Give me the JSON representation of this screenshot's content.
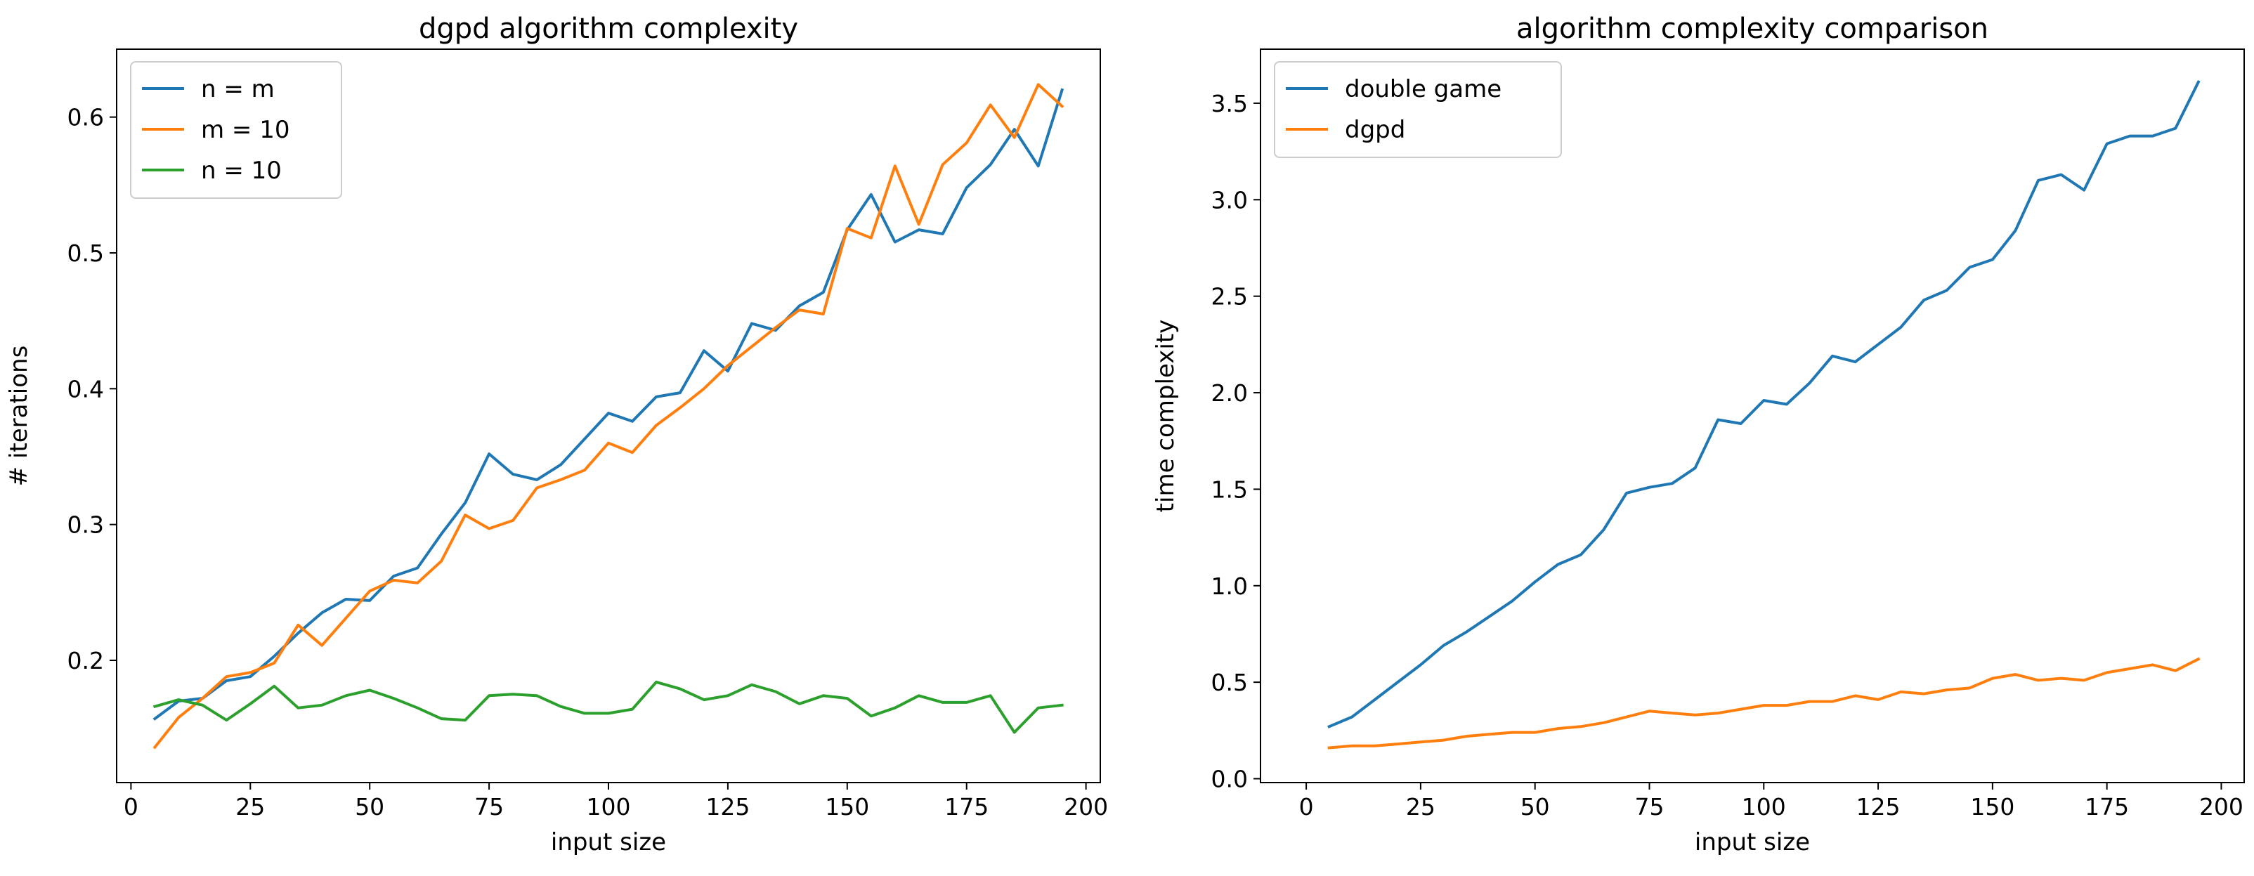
{
  "chart_data": [
    {
      "type": "line",
      "title": "dgpd algorithm complexity",
      "xlabel": "input size",
      "ylabel": "# iterations",
      "xlim": [
        -3,
        203
      ],
      "ylim": [
        0.11,
        0.65
      ],
      "xticks": [
        0,
        25,
        50,
        75,
        100,
        125,
        150,
        175,
        200
      ],
      "yticks": [
        0.2,
        0.3,
        0.4,
        0.5,
        0.6
      ],
      "grid": false,
      "legend_position": "upper left",
      "x": [
        5,
        10,
        15,
        20,
        25,
        30,
        35,
        40,
        45,
        50,
        55,
        60,
        65,
        70,
        75,
        80,
        85,
        90,
        95,
        100,
        105,
        110,
        115,
        120,
        125,
        130,
        135,
        140,
        145,
        150,
        155,
        160,
        165,
        170,
        175,
        180,
        185,
        190,
        195
      ],
      "series": [
        {
          "name": "n = m",
          "color": "#1f77b4",
          "values": [
            0.157,
            0.17,
            0.172,
            0.185,
            0.188,
            0.203,
            0.22,
            0.235,
            0.245,
            0.244,
            0.262,
            0.268,
            0.293,
            0.316,
            0.352,
            0.337,
            0.333,
            0.344,
            0.363,
            0.382,
            0.376,
            0.394,
            0.397,
            0.428,
            0.413,
            0.448,
            0.443,
            0.461,
            0.471,
            0.517,
            0.543,
            0.508,
            0.517,
            0.514,
            0.548,
            0.565,
            0.591,
            0.564,
            0.62
          ]
        },
        {
          "name": "m = 10",
          "color": "#ff7f0e",
          "values": [
            0.136,
            0.158,
            0.172,
            0.188,
            0.191,
            0.198,
            0.226,
            0.211,
            0.231,
            0.251,
            0.259,
            0.257,
            0.273,
            0.307,
            0.297,
            0.303,
            0.327,
            0.333,
            0.34,
            0.36,
            0.353,
            0.373,
            0.386,
            0.4,
            0.417,
            0.431,
            0.445,
            0.458,
            0.455,
            0.518,
            0.511,
            0.564,
            0.521,
            0.565,
            0.581,
            0.609,
            0.585,
            0.624,
            0.608
          ]
        },
        {
          "name": "n = 10",
          "color": "#2ca02c",
          "values": [
            0.166,
            0.171,
            0.167,
            0.156,
            0.168,
            0.181,
            0.165,
            0.167,
            0.174,
            0.178,
            0.172,
            0.165,
            0.157,
            0.156,
            0.174,
            0.175,
            0.174,
            0.166,
            0.161,
            0.161,
            0.164,
            0.184,
            0.179,
            0.171,
            0.174,
            0.182,
            0.177,
            0.168,
            0.174,
            0.172,
            0.159,
            0.165,
            0.174,
            0.169,
            0.169,
            0.174,
            0.147,
            0.165,
            0.167
          ]
        }
      ]
    },
    {
      "type": "line",
      "title": "algorithm complexity comparison",
      "xlabel": "input size",
      "ylabel": "time complexity",
      "xlim": [
        -10,
        205
      ],
      "ylim": [
        -0.02,
        3.78
      ],
      "xticks": [
        0,
        25,
        50,
        75,
        100,
        125,
        150,
        175,
        200
      ],
      "yticks": [
        0.0,
        0.5,
        1.0,
        1.5,
        2.0,
        2.5,
        3.0,
        3.5
      ],
      "ytick_labels": [
        "0.0",
        "0.5",
        "1.0",
        "1.5",
        "2.0",
        "2.5",
        "3.0",
        "3.5"
      ],
      "grid": false,
      "legend_position": "upper left",
      "x": [
        5,
        10,
        15,
        20,
        25,
        30,
        35,
        40,
        45,
        50,
        55,
        60,
        65,
        70,
        75,
        80,
        85,
        90,
        95,
        100,
        105,
        110,
        115,
        120,
        125,
        130,
        135,
        140,
        145,
        150,
        155,
        160,
        165,
        170,
        175,
        180,
        185,
        190,
        195
      ],
      "series": [
        {
          "name": "double game",
          "color": "#1f77b4",
          "values": [
            0.27,
            0.32,
            0.41,
            0.5,
            0.59,
            0.69,
            0.76,
            0.84,
            0.92,
            1.02,
            1.11,
            1.16,
            1.29,
            1.48,
            1.51,
            1.53,
            1.61,
            1.86,
            1.84,
            1.96,
            1.94,
            2.05,
            2.19,
            2.16,
            2.25,
            2.34,
            2.48,
            2.53,
            2.65,
            2.69,
            2.84,
            3.1,
            3.13,
            3.05,
            3.29,
            3.33,
            3.33,
            3.37,
            3.61
          ]
        },
        {
          "name": "dgpd",
          "color": "#ff7f0e",
          "values": [
            0.16,
            0.17,
            0.17,
            0.18,
            0.19,
            0.2,
            0.22,
            0.23,
            0.24,
            0.24,
            0.26,
            0.27,
            0.29,
            0.32,
            0.35,
            0.34,
            0.33,
            0.34,
            0.36,
            0.38,
            0.38,
            0.4,
            0.4,
            0.43,
            0.41,
            0.45,
            0.44,
            0.46,
            0.47,
            0.52,
            0.54,
            0.51,
            0.52,
            0.51,
            0.55,
            0.57,
            0.59,
            0.56,
            0.62
          ]
        }
      ]
    }
  ]
}
